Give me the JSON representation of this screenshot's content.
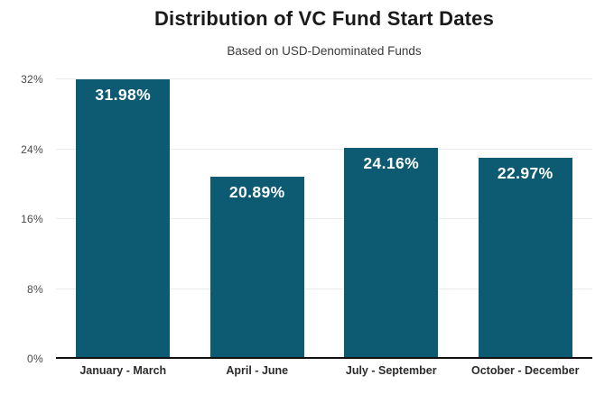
{
  "header": {
    "title": "Distribution of VC Fund Start Dates",
    "subtitle": "Based on USD-Denominated Funds"
  },
  "chart_data": {
    "type": "bar",
    "title": "Distribution of VC Fund Start Dates",
    "subtitle": "Based on USD-Denominated Funds",
    "categories": [
      "January - March",
      "April - June",
      "July - September",
      "October - December"
    ],
    "values": [
      31.98,
      20.89,
      24.16,
      22.97
    ],
    "value_labels": [
      "31.98%",
      "20.89%",
      "24.16%",
      "22.97%"
    ],
    "xlabel": "",
    "ylabel": "",
    "ylim": [
      0,
      32
    ],
    "yticks": [
      0,
      8,
      16,
      24,
      32
    ],
    "ytick_labels": [
      "0%",
      "8%",
      "16%",
      "24%",
      "32%"
    ],
    "grid": "horizontal-only",
    "legend_position": "none",
    "colors": {
      "bar": "#0d5a73",
      "bar_value_label": "#ffffff",
      "gridline": "#ebebeb",
      "baseline": "#111111",
      "y_tick_label": "#4a4a4a",
      "x_tick_label": "#2b2b2b",
      "title": "#1a1a1a",
      "subtitle": "#3a3a3a",
      "background": "#ffffff"
    }
  }
}
